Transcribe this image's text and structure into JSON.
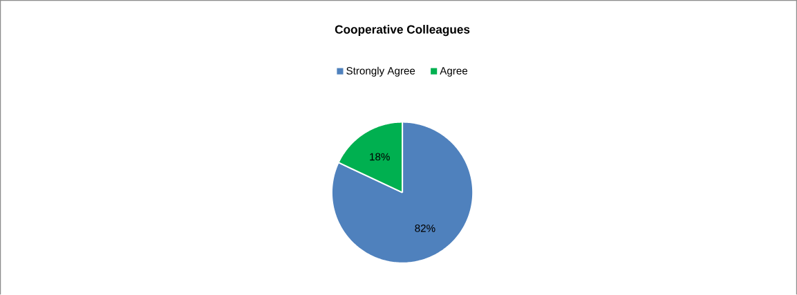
{
  "chart_data": {
    "type": "pie",
    "title": "Cooperative Colleagues",
    "categories": [
      "Strongly Agree",
      "Agree"
    ],
    "values": [
      82,
      18
    ],
    "value_labels": [
      "82%",
      "18%"
    ],
    "colors": [
      "#4f81bd",
      "#00b050"
    ],
    "legend": "top"
  }
}
